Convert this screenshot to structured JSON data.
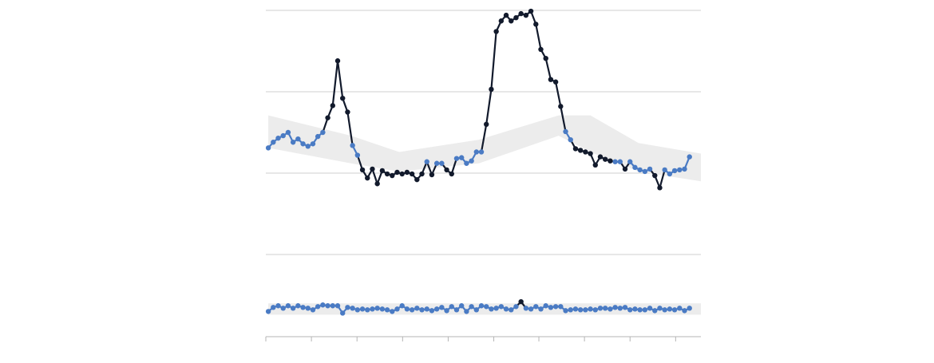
{
  "chart_data": {
    "type": "line",
    "x": [
      0,
      1,
      2,
      3,
      4,
      5,
      6,
      7,
      8,
      9,
      10,
      11,
      12,
      13,
      14,
      15,
      16,
      17,
      18,
      19,
      20,
      21,
      22,
      23,
      24,
      25,
      26,
      27,
      28,
      29,
      30,
      31,
      32,
      33,
      34,
      35,
      36,
      37,
      38,
      39,
      40,
      41,
      42,
      43,
      44,
      45,
      46,
      47,
      48,
      49,
      50,
      51,
      52,
      53,
      54,
      55,
      56,
      57,
      58,
      59,
      60,
      61,
      62,
      63,
      64,
      65,
      66,
      67,
      68,
      69,
      70,
      71,
      72,
      73,
      74,
      75,
      76,
      77,
      78,
      79,
      80,
      81,
      82,
      83,
      84,
      85
    ],
    "series": [
      {
        "color": "#4a7bc4",
        "alert_color": "#121a2c",
        "values": [
          2.31,
          2.38,
          2.43,
          2.46,
          2.5,
          2.38,
          2.42,
          2.36,
          2.33,
          2.36,
          2.45,
          2.5,
          2.68,
          2.83,
          3.38,
          2.92,
          2.75,
          2.34,
          2.22,
          2.04,
          1.94,
          2.05,
          1.87,
          2.03,
          1.99,
          1.97,
          2.01,
          1.99,
          2.01,
          1.99,
          1.92,
          1.99,
          2.14,
          1.98,
          2.12,
          2.12,
          2.04,
          1.99,
          2.18,
          2.19,
          2.12,
          2.15,
          2.26,
          2.26,
          2.6,
          3.03,
          3.74,
          3.87,
          3.94,
          3.87,
          3.91,
          3.96,
          3.94,
          3.99,
          3.83,
          3.52,
          3.41,
          3.15,
          3.12,
          2.82,
          2.51,
          2.41,
          2.3,
          2.28,
          2.26,
          2.24,
          2.1,
          2.2,
          2.17,
          2.15,
          2.14,
          2.14,
          2.05,
          2.14,
          2.07,
          2.04,
          2.02,
          2.05,
          1.97,
          1.82,
          2.04,
          1.99,
          2.03,
          2.04,
          2.05,
          2.2
        ],
        "band": {
          "x": [
            0,
            16.7,
            26.4,
            42.5,
            58.6,
            65,
            74.7,
            87.3
          ],
          "lower": [
            2.31,
            2.12,
            2.02,
            2.12,
            2.46,
            2.26,
            2.02,
            1.9
          ],
          "upper": [
            2.71,
            2.46,
            2.26,
            2.41,
            2.71,
            2.71,
            2.37,
            2.24
          ]
        }
      },
      {
        "color": "#4a7bc4",
        "alert_color": "#121a2c",
        "values": [
          0.3,
          0.35,
          0.37,
          0.34,
          0.37,
          0.34,
          0.37,
          0.35,
          0.34,
          0.32,
          0.36,
          0.38,
          0.37,
          0.37,
          0.37,
          0.28,
          0.35,
          0.34,
          0.32,
          0.33,
          0.32,
          0.33,
          0.34,
          0.33,
          0.32,
          0.3,
          0.33,
          0.37,
          0.33,
          0.32,
          0.34,
          0.32,
          0.33,
          0.31,
          0.33,
          0.35,
          0.31,
          0.36,
          0.32,
          0.37,
          0.3,
          0.36,
          0.32,
          0.37,
          0.36,
          0.33,
          0.34,
          0.36,
          0.33,
          0.32,
          0.36,
          0.42,
          0.34,
          0.33,
          0.36,
          0.33,
          0.37,
          0.35,
          0.36,
          0.36,
          0.31,
          0.32,
          0.33,
          0.32,
          0.32,
          0.33,
          0.32,
          0.34,
          0.34,
          0.33,
          0.35,
          0.34,
          0.35,
          0.32,
          0.33,
          0.32,
          0.32,
          0.34,
          0.31,
          0.34,
          0.32,
          0.33,
          0.32,
          0.34,
          0.31,
          0.34
        ],
        "band": {
          "x": [
            0,
            87.3
          ],
          "lower": [
            0.26,
            0.26
          ],
          "upper": [
            0.4,
            0.4
          ]
        }
      }
    ],
    "band_color": "#ececec",
    "xlim": [
      -0.5,
      87.3
    ],
    "xticks": [
      -0.5,
      8.7,
      17.9,
      27.1,
      36.3,
      45.5,
      54.6,
      63.8,
      73,
      82.2
    ],
    "ylim": [
      0,
      4
    ],
    "yticks": [
      1,
      2,
      3,
      4
    ],
    "grid": true
  }
}
